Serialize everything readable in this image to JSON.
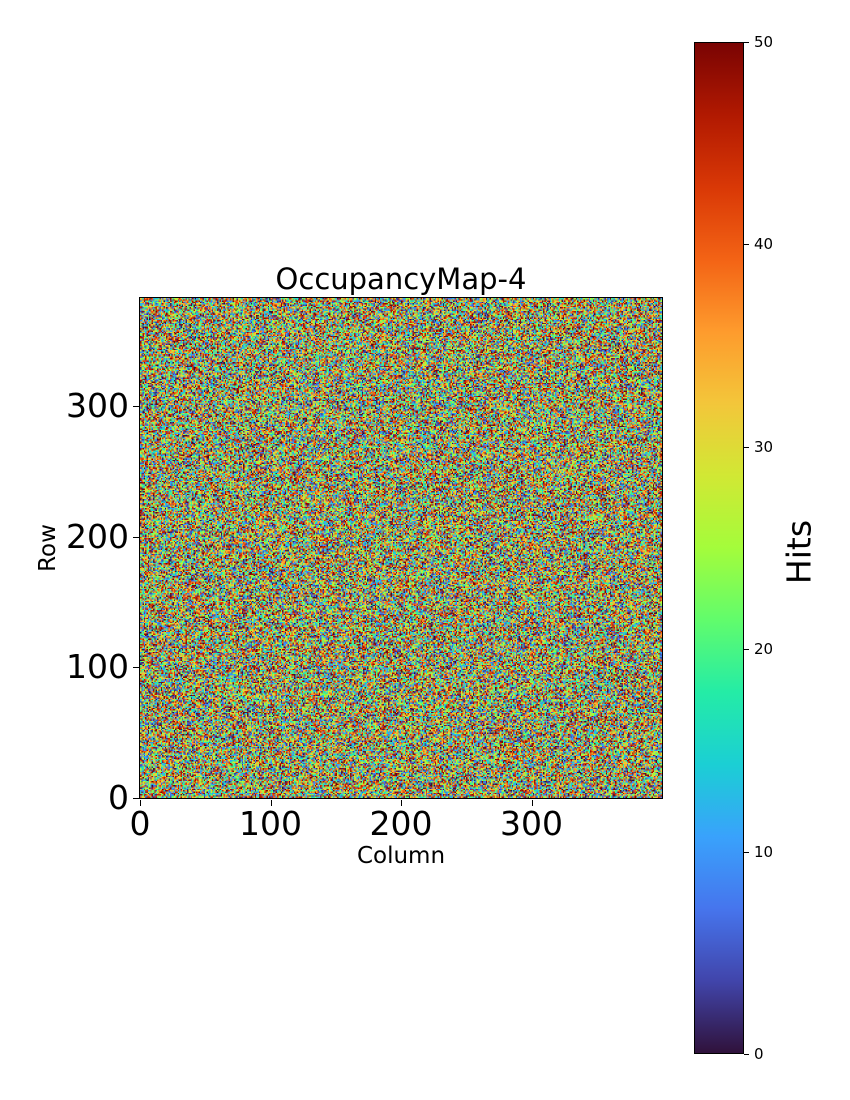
{
  "chart_data": {
    "type": "heatmap",
    "title": "OccupancyMap-4",
    "xlabel": "Column",
    "ylabel": "Row",
    "xlim": [
      0,
      400
    ],
    "ylim": [
      0,
      383
    ],
    "grid_shape": {
      "rows": 383,
      "columns": 400
    },
    "xticks": [
      0,
      100,
      200,
      300
    ],
    "yticks": [
      0,
      100,
      200,
      300
    ],
    "origin": "lower",
    "values_description": "spatially uncorrelated random noise",
    "value_range": [
      0,
      50
    ],
    "colormap": "turbo",
    "colormap_stops": [
      "#30123b",
      "#4145ab",
      "#4675ed",
      "#39a2fc",
      "#1bcfd4",
      "#24eca6",
      "#61fc6c",
      "#a4fc3b",
      "#d1e834",
      "#f3c63a",
      "#fe9b2d",
      "#f36315",
      "#d93806",
      "#b11901",
      "#7a0403"
    ],
    "colorbar": {
      "label": "Hits",
      "ticks": [
        0,
        10,
        20,
        30,
        40,
        50
      ],
      "range": [
        0,
        50
      ]
    },
    "grid": false
  }
}
